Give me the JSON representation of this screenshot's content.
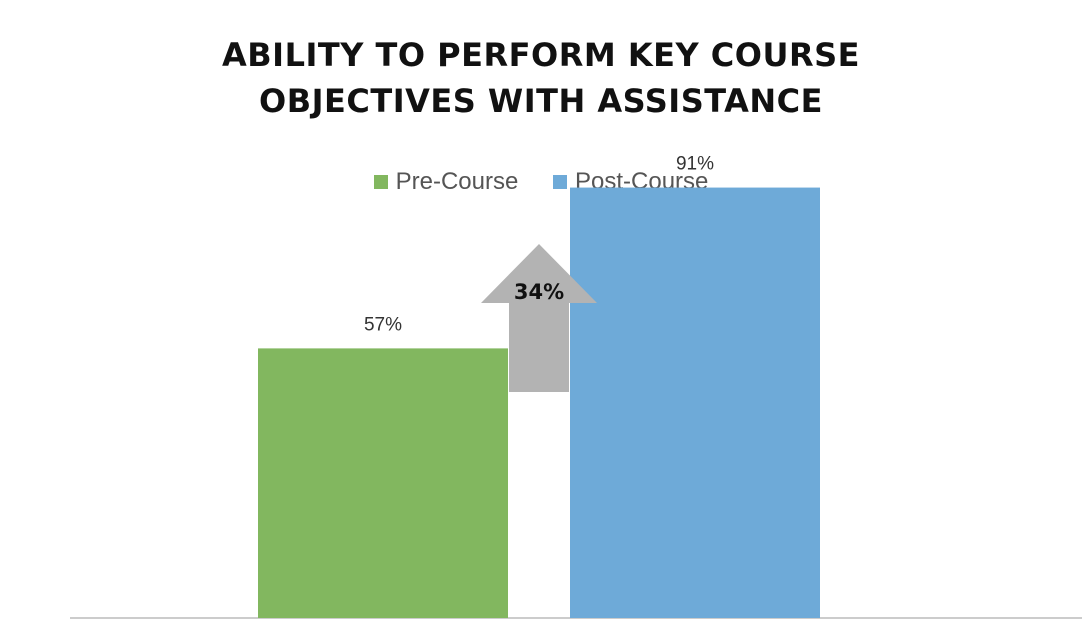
{
  "chart_data": {
    "type": "bar",
    "title": [
      "ABILITY TO PERFORM KEY COURSE",
      "OBJECTIVES WITH ASSISTANCE"
    ],
    "categories": [
      ""
    ],
    "series": [
      {
        "name": "Pre-Course",
        "values": [
          57
        ],
        "color": "#82b75f",
        "label": "57%"
      },
      {
        "name": "Post-Course",
        "values": [
          91
        ],
        "color": "#6eaad8",
        "label": "91%"
      }
    ],
    "ylim": [
      0,
      100
    ],
    "grid": false,
    "legend": "top-center",
    "annotation": {
      "type": "up-arrow",
      "text": "34%",
      "color": "#b3b3b3"
    },
    "axis_color": "#cccccc"
  }
}
